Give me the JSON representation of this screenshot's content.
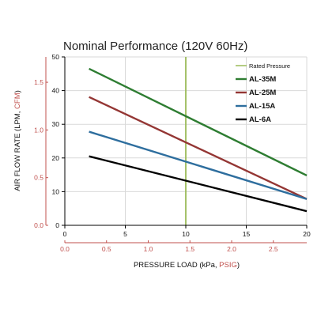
{
  "chart_data": {
    "type": "line",
    "title": "Nominal Performance (120V 60Hz)",
    "xlabel": {
      "main": "PRESSURE LOAD (kPa, ",
      "alt": "PSIG",
      "close": ")"
    },
    "ylabel": {
      "main": "AIR FLOW RATE  (LPM, ",
      "alt": "CFM",
      "close": ")"
    },
    "xlim": [
      0,
      20
    ],
    "ylim": [
      0,
      50
    ],
    "x_ticks": [
      "0",
      "5",
      "10",
      "15",
      "20"
    ],
    "x_tick_values": [
      0,
      5,
      10,
      15,
      20
    ],
    "x_alt_ticks": [
      "0.0",
      "0.5",
      "1.0",
      "1.5",
      "2.0",
      "2.5"
    ],
    "x_alt_tick_values": [
      0,
      0.5,
      1.0,
      1.5,
      2.0,
      2.5
    ],
    "x_alt_to_primary": 6.895,
    "y_ticks": [
      "0",
      "10",
      "20",
      "30",
      "40",
      "50"
    ],
    "y_tick_values": [
      0,
      10,
      20,
      30,
      40,
      50
    ],
    "y_alt_ticks": [
      "0.0",
      "0.5",
      "1.0",
      "1.5"
    ],
    "y_alt_tick_values": [
      0,
      0.5,
      1.0,
      1.5
    ],
    "y_alt_to_primary": 28.3168,
    "grid": true,
    "legend_position": "top-right",
    "rated_pressure": {
      "name": "Rated Pressure",
      "x": 10,
      "color": "#9bbb59"
    },
    "series": [
      {
        "name": "AL-35M",
        "color": "#2e7d32",
        "x": [
          2,
          20
        ],
        "y": [
          46.5,
          14.8
        ]
      },
      {
        "name": "AL-25M",
        "color": "#943634",
        "x": [
          2,
          20
        ],
        "y": [
          38.1,
          7.8
        ]
      },
      {
        "name": "AL-15A",
        "color": "#2e6e9e",
        "x": [
          2,
          20
        ],
        "y": [
          27.8,
          7.8
        ]
      },
      {
        "name": "AL-6A",
        "color": "#000000",
        "x": [
          2,
          20
        ],
        "y": [
          20.5,
          4.2
        ]
      }
    ],
    "colors": {
      "alt_axis": "#c0504d",
      "grid": "#d9d9d9"
    }
  }
}
